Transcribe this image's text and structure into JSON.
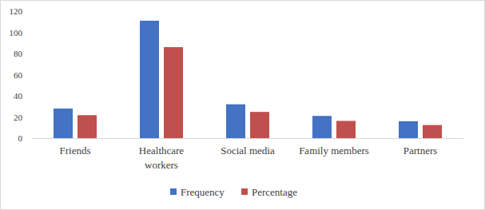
{
  "chart_data": {
    "type": "bar",
    "categories": [
      "Friends",
      "Healthcare workers",
      "Social media",
      "Family members",
      "Partners"
    ],
    "series": [
      {
        "name": "Frequency",
        "color": "#4472c4",
        "values": [
          28,
          111,
          32,
          21,
          16
        ]
      },
      {
        "name": "Percentage",
        "color": "#c0504d",
        "values": [
          21.7,
          86,
          24.8,
          16.3,
          12.4
        ]
      }
    ],
    "ylim": [
      0,
      120
    ],
    "yticks": [
      0,
      20,
      40,
      60,
      80,
      100,
      120
    ],
    "grid": false,
    "legend": "bottom"
  }
}
